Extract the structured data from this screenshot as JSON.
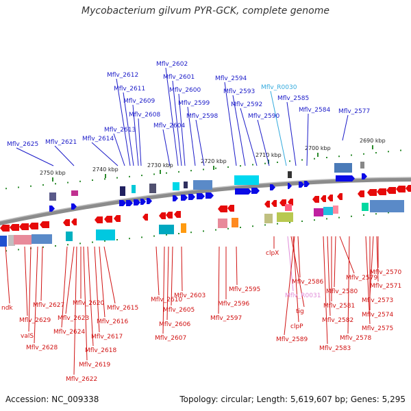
{
  "title": "Mycobacterium gilvum PYR-GCK, complete genome",
  "accession": "Accession: NC_009338",
  "summary": "Topology: circular; Length: 5,619,607 bp; Genes: 5,295",
  "colors": {
    "forward_label": "#1a1ac8",
    "reverse_label": "#d01010",
    "rna_forward_label": "#33aadd",
    "rna_reverse_label": "#e08ad8",
    "forward_gene": "#0a0ae6",
    "reverse_gene": "#e60a0a",
    "tick": "#2a8a2a"
  },
  "scale_ticks": [
    {
      "label": "2750 kbp"
    },
    {
      "label": "2740 kbp"
    },
    {
      "label": "2730 kbp"
    },
    {
      "label": "2720 kbp"
    },
    {
      "label": "2710 kbp"
    },
    {
      "label": "2700 kbp"
    },
    {
      "label": "2690 kbp"
    }
  ],
  "forward_genes": [
    {
      "label": "Mflv_2625"
    },
    {
      "label": "Mflv_2621"
    },
    {
      "label": "Mflv_2614"
    },
    {
      "label": "Mflv_2613"
    },
    {
      "label": "Mflv_2612"
    },
    {
      "label": "Mflv_2611"
    },
    {
      "label": "Mflv_2609"
    },
    {
      "label": "Mflv_2608"
    },
    {
      "label": "Mflv_2604"
    },
    {
      "label": "Mflv_2602"
    },
    {
      "label": "Mflv_2601"
    },
    {
      "label": "Mflv_2600"
    },
    {
      "label": "Mflv_2599"
    },
    {
      "label": "Mflv_2598"
    },
    {
      "label": "Mflv_2594"
    },
    {
      "label": "Mflv_2593"
    },
    {
      "label": "Mflv_2592"
    },
    {
      "label": "Mflv_2590"
    },
    {
      "label": "Mflv_R0030"
    },
    {
      "label": "Mflv_2585"
    },
    {
      "label": "Mflv_2584"
    },
    {
      "label": "Mflv_2577"
    }
  ],
  "reverse_genes": [
    {
      "label": "ndk"
    },
    {
      "label": "Mflv_2629"
    },
    {
      "label": "valS"
    },
    {
      "label": "Mflv_2628"
    },
    {
      "label": "Mflv_2627"
    },
    {
      "label": "Mflv_2624"
    },
    {
      "label": "Mflv_2623"
    },
    {
      "label": "Mflv_2622"
    },
    {
      "label": "Mflv_2620"
    },
    {
      "label": "Mflv_2619"
    },
    {
      "label": "Mflv_2618"
    },
    {
      "label": "Mflv_2617"
    },
    {
      "label": "Mflv_2616"
    },
    {
      "label": "Mflv_2615"
    },
    {
      "label": "Mflv_2610"
    },
    {
      "label": "Mflv_2607"
    },
    {
      "label": "Mflv_2606"
    },
    {
      "label": "Mflv_2605"
    },
    {
      "label": "Mflv_2603"
    },
    {
      "label": "Mflv_2597"
    },
    {
      "label": "Mflv_2596"
    },
    {
      "label": "Mflv_2595"
    },
    {
      "label": "clpX"
    },
    {
      "label": "Mflv_R0031"
    },
    {
      "label": "tig"
    },
    {
      "label": "clpP"
    },
    {
      "label": "Mflv_2589"
    },
    {
      "label": "Mflv_2586"
    },
    {
      "label": "Mflv_2583"
    },
    {
      "label": "Mflv_2582"
    },
    {
      "label": "Mflv_2581"
    },
    {
      "label": "Mflv_2580"
    },
    {
      "label": "Mflv_2579"
    },
    {
      "label": "Mflv_2578"
    },
    {
      "label": "Mflv_2575"
    },
    {
      "label": "Mflv_2574"
    },
    {
      "label": "Mflv_2573"
    },
    {
      "label": "Mflv_2571"
    },
    {
      "label": "Mflv_2570"
    }
  ]
}
